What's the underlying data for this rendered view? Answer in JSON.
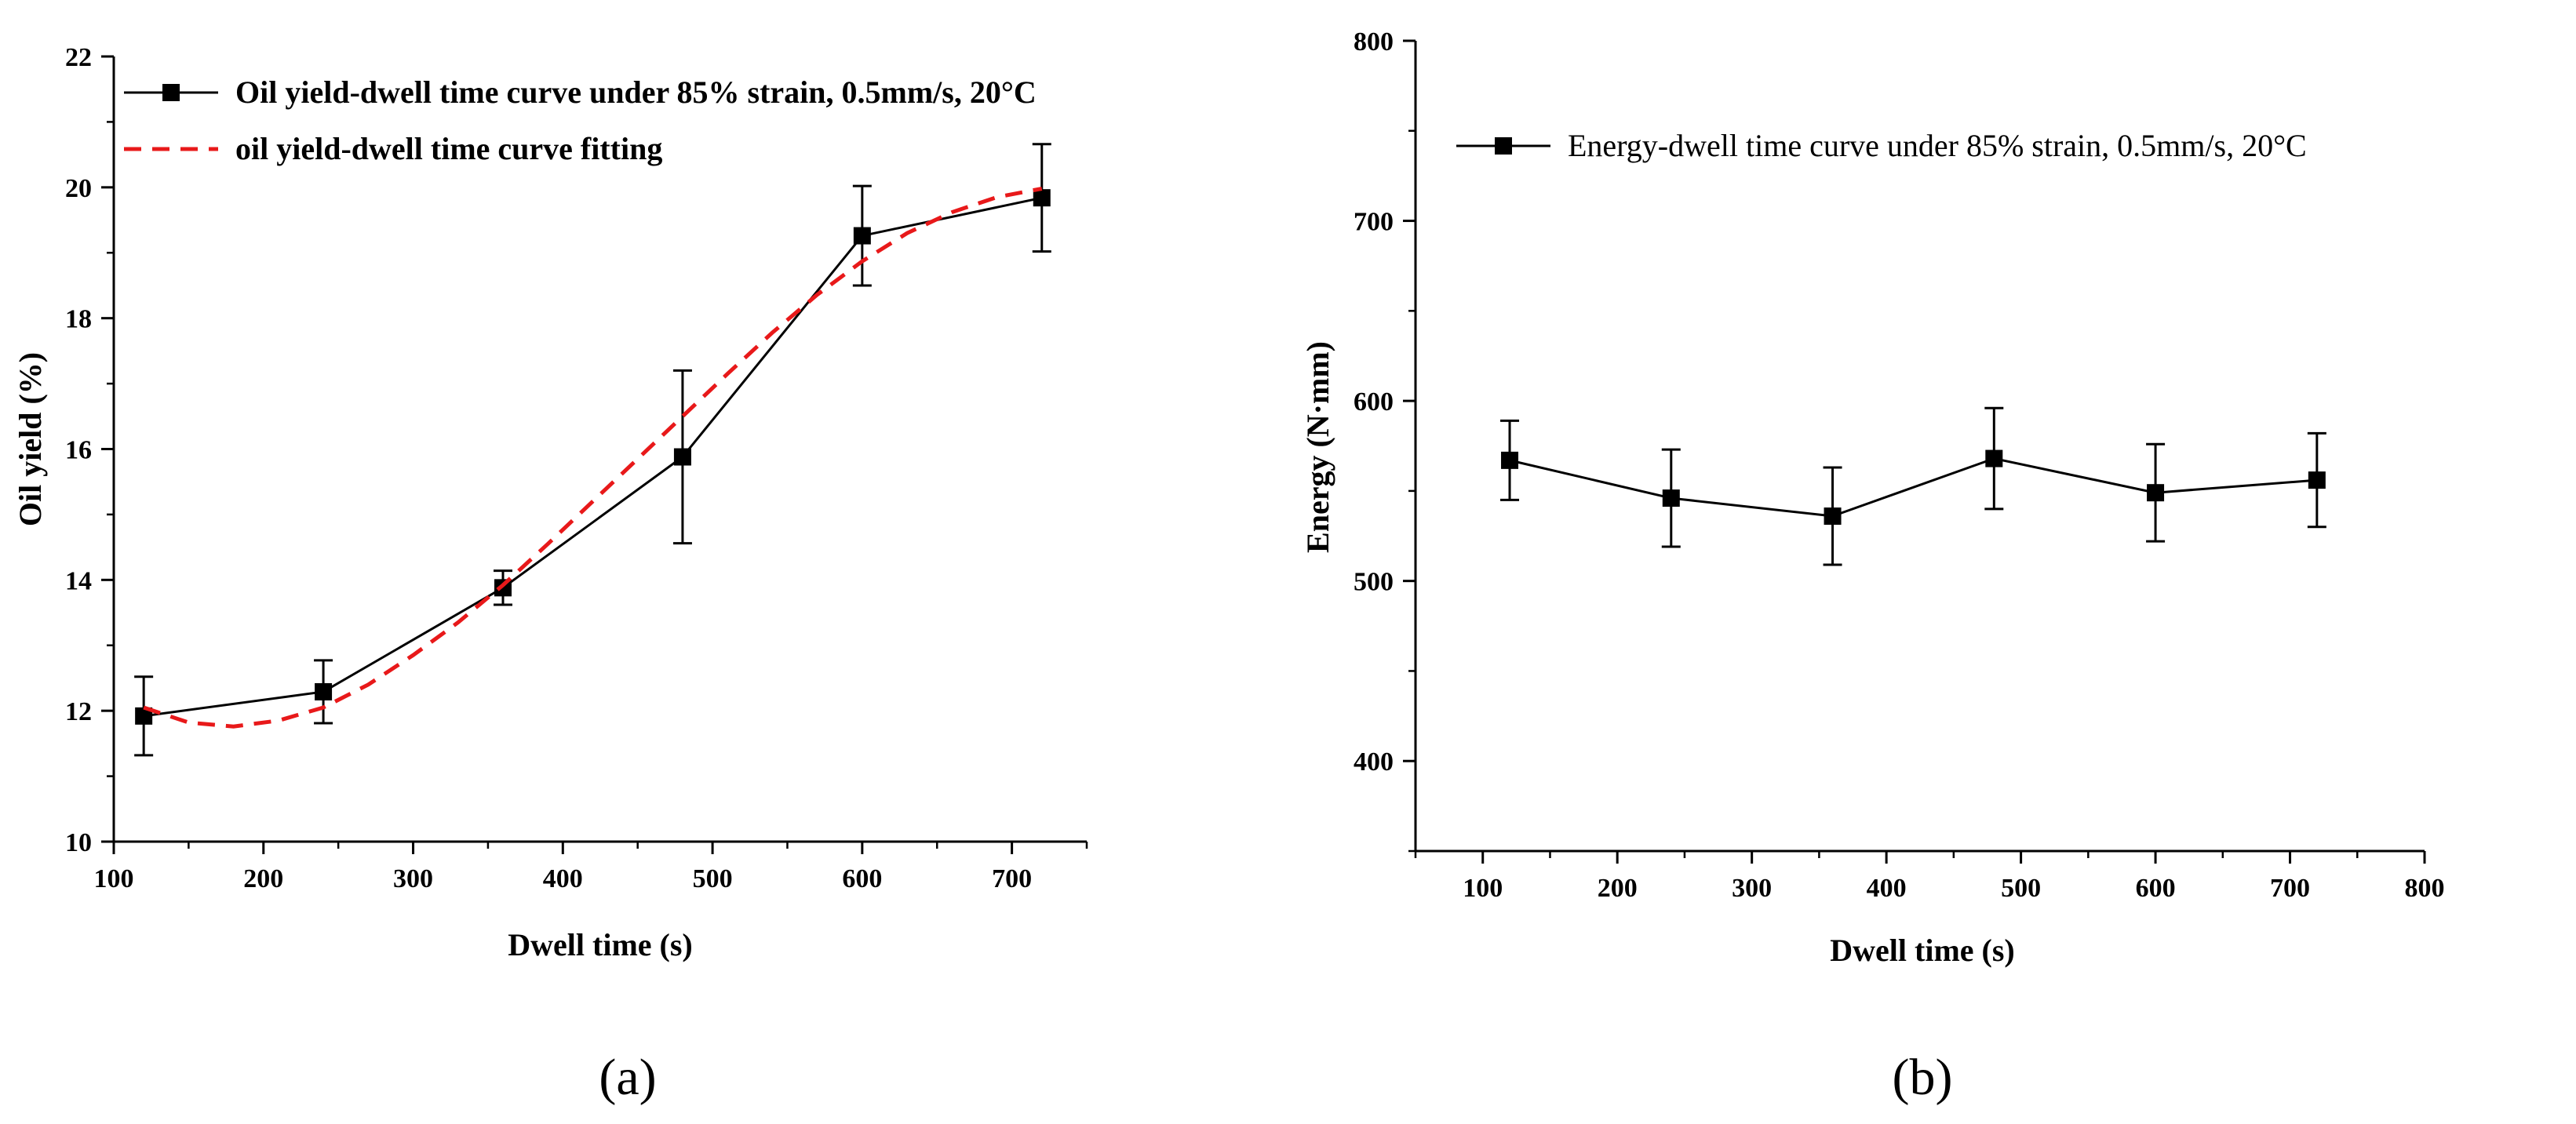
{
  "chart_data": [
    {
      "panel_label": "(a)",
      "type": "line",
      "xlabel": "Dwell time (s)",
      "ylabel": "Oil yield (%)",
      "xlim": [
        100,
        750
      ],
      "ylim": [
        10,
        22
      ],
      "xticks": [
        100,
        200,
        300,
        400,
        500,
        600,
        700
      ],
      "yticks": [
        10,
        12,
        14,
        16,
        18,
        20,
        22
      ],
      "legend_position": "top-left",
      "grid": false,
      "series": [
        {
          "name": "Oil yield-dwell time curve under 85% strain, 0.5mm/s, 20°C",
          "style": "solid-line-square-markers",
          "color": "#000000",
          "x": [
            120,
            240,
            360,
            480,
            600,
            720
          ],
          "y": [
            11.92,
            12.29,
            13.88,
            15.88,
            19.26,
            19.84
          ],
          "error": [
            0.6,
            0.48,
            0.26,
            1.32,
            0.76,
            0.82
          ]
        },
        {
          "name": "oil yield-dwell time curve fitting",
          "style": "dashed-line",
          "color": "#e8191a",
          "x": [
            120,
            150,
            180,
            210,
            240,
            270,
            300,
            330,
            360,
            390,
            420,
            450,
            480,
            510,
            540,
            570,
            600,
            630,
            660,
            690,
            720
          ],
          "y": [
            12.05,
            11.82,
            11.76,
            11.85,
            12.05,
            12.4,
            12.85,
            13.35,
            13.92,
            14.55,
            15.2,
            15.85,
            16.5,
            17.15,
            17.78,
            18.36,
            18.87,
            19.3,
            19.62,
            19.85,
            19.98
          ]
        }
      ]
    },
    {
      "panel_label": "(b)",
      "type": "line",
      "xlabel": "Dwell time (s)",
      "ylabel": "Energy (N·mm)",
      "xlim": [
        50,
        800
      ],
      "ylim": [
        350,
        800
      ],
      "xticks": [
        100,
        200,
        300,
        400,
        500,
        600,
        700,
        800
      ],
      "yticks": [
        400,
        500,
        600,
        700,
        800
      ],
      "legend_position": "top-left",
      "grid": false,
      "series": [
        {
          "name": "Energy-dwell time curve under 85% strain, 0.5mm/s, 20°C",
          "style": "solid-line-square-markers",
          "color": "#000000",
          "x": [
            120,
            240,
            360,
            480,
            600,
            720
          ],
          "y": [
            567,
            546,
            536,
            568,
            549,
            556
          ],
          "error": [
            22,
            27,
            27,
            28,
            27,
            26
          ]
        }
      ]
    }
  ]
}
